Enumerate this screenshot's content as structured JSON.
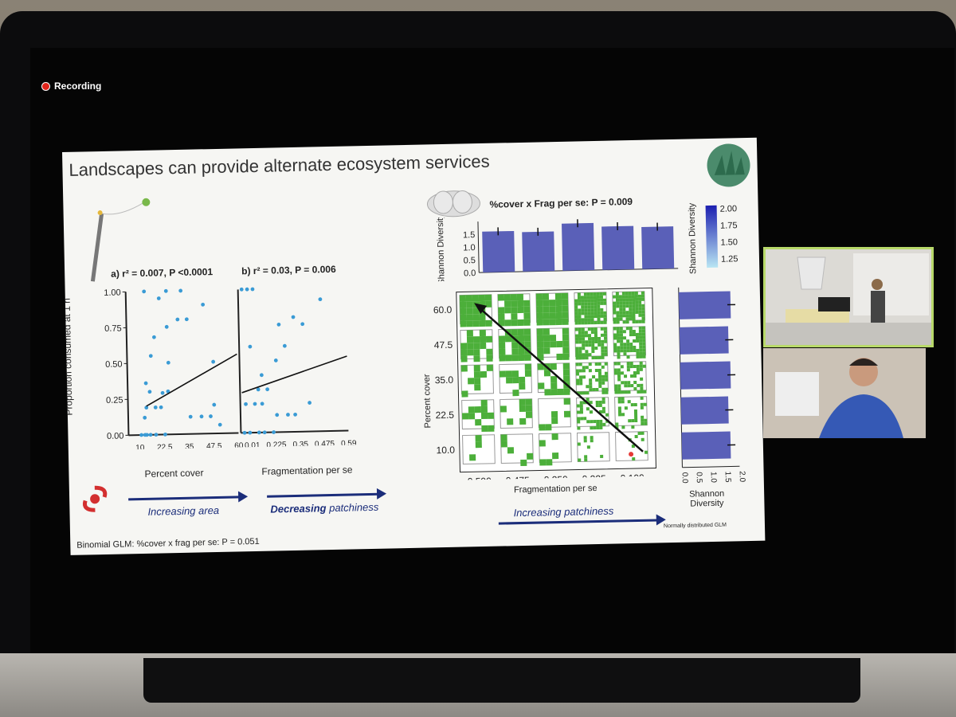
{
  "recording": {
    "label": "Recording"
  },
  "slide": {
    "title": "Landscapes can provide alternate ecosystem services",
    "footer_left": "Binomial GLM: %cover x frag per se: P = 0.051",
    "footer_right": "Normally distributed GLM",
    "arrow_area_label": "Increasing area",
    "arrow_patchiness_label_bold": "Decreasing",
    "arrow_patchiness_label_rest": " patchiness",
    "arrow_increasing_patchiness": "Increasing patchiness",
    "top_stat": "%cover x Frag per se: P = 0.009"
  },
  "chart_data": [
    {
      "type": "scatter",
      "panel": "a)",
      "title": "r² = 0.007, P <0.0001",
      "ylabel": "Proportion consumed at 1 h",
      "xlabel": "Percent cover",
      "x_ticks": [
        "10",
        "22.5",
        "35",
        "47.5",
        "60"
      ],
      "y_ticks": [
        "0.00",
        "0.25",
        "0.50",
        "0.75",
        "1.00"
      ],
      "ylim": [
        0,
        1
      ],
      "xlim": [
        0,
        60
      ],
      "points": [
        [
          7,
          0
        ],
        [
          9,
          0
        ],
        [
          10,
          0
        ],
        [
          12,
          0
        ],
        [
          15,
          0
        ],
        [
          20,
          0
        ],
        [
          9,
          0.12
        ],
        [
          15,
          0.19
        ],
        [
          18,
          0.19
        ],
        [
          10,
          0.19
        ],
        [
          12,
          0.3
        ],
        [
          19,
          0.29
        ],
        [
          22,
          0.3
        ],
        [
          10,
          0.36
        ],
        [
          22.5,
          0.5
        ],
        [
          22,
          0.75
        ],
        [
          15,
          0.68
        ],
        [
          13,
          0.55
        ],
        [
          28,
          0.8
        ],
        [
          33,
          0.8
        ],
        [
          34,
          0.12
        ],
        [
          40,
          0.12
        ],
        [
          45,
          0.12
        ],
        [
          47,
          0.2
        ],
        [
          42,
          0.9
        ],
        [
          47,
          0.5
        ],
        [
          50,
          0.06
        ],
        [
          10,
          1
        ],
        [
          30,
          1
        ],
        [
          22,
          1
        ],
        [
          18,
          0.95
        ]
      ],
      "fit_line": [
        [
          10,
          0.2
        ],
        [
          60,
          0.55
        ]
      ]
    },
    {
      "type": "scatter",
      "panel": "b)",
      "title": "r² = 0.03, P = 0.006",
      "xlabel": "Fragmentation per se",
      "x_ticks": [
        "0.01",
        "0.225",
        "0.35",
        "0.475",
        "0.59"
      ],
      "ylim": [
        0,
        1
      ],
      "xlim": [
        0,
        0.59
      ],
      "points": [
        [
          0.02,
          1
        ],
        [
          0.05,
          1
        ],
        [
          0.08,
          1
        ],
        [
          0.02,
          0
        ],
        [
          0.05,
          0
        ],
        [
          0.1,
          0
        ],
        [
          0.13,
          0
        ],
        [
          0.18,
          0
        ],
        [
          0.03,
          0.2
        ],
        [
          0.08,
          0.2
        ],
        [
          0.12,
          0.2
        ],
        [
          0.2,
          0.12
        ],
        [
          0.26,
          0.12
        ],
        [
          0.3,
          0.12
        ],
        [
          0.1,
          0.3
        ],
        [
          0.15,
          0.3
        ],
        [
          0.2,
          0.5
        ],
        [
          0.25,
          0.6
        ],
        [
          0.3,
          0.8
        ],
        [
          0.22,
          0.75
        ],
        [
          0.35,
          0.75
        ],
        [
          0.45,
          0.92
        ],
        [
          0.38,
          0.2
        ],
        [
          0.06,
          0.6
        ],
        [
          0.12,
          0.4
        ]
      ],
      "fit_line": [
        [
          0.01,
          0.28
        ],
        [
          0.59,
          0.52
        ]
      ]
    },
    {
      "type": "bar",
      "ylabel": "Shannon Diversity",
      "y_ticks": [
        "0.0",
        "0.5",
        "1.0",
        "1.5"
      ],
      "ylim": [
        0,
        2
      ],
      "categories": [
        "0.590",
        "0.475",
        "0.350",
        "0.225",
        "0.100"
      ],
      "values": [
        1.6,
        1.55,
        1.85,
        1.7,
        1.65
      ],
      "color": "#5a60b8"
    },
    {
      "type": "heatmap",
      "xlabel": "Fragmentation per se",
      "ylabel": "Percent cover",
      "x_ticks": [
        "0.590",
        "0.475",
        "0.350",
        "0.225",
        "0.100"
      ],
      "y_ticks": [
        "60.0",
        "47.5",
        "35.0",
        "22.5",
        "10.0"
      ],
      "colorbar_label": "Shannon Diversity",
      "colorbar_ticks": [
        "2.00",
        "1.75",
        "1.50",
        "1.25"
      ],
      "green": "#4caf3a"
    },
    {
      "type": "bar",
      "orientation": "horizontal",
      "xlabel": "Shannon Diversity",
      "x_ticks": [
        "0.0",
        "0.5",
        "1.0",
        "1.5",
        "2.0"
      ],
      "categories": [
        "60.0",
        "47.5",
        "35.0",
        "22.5",
        "10.0"
      ],
      "values": [
        1.8,
        1.7,
        1.75,
        1.65,
        1.7
      ],
      "xlim": [
        0,
        2
      ]
    }
  ]
}
